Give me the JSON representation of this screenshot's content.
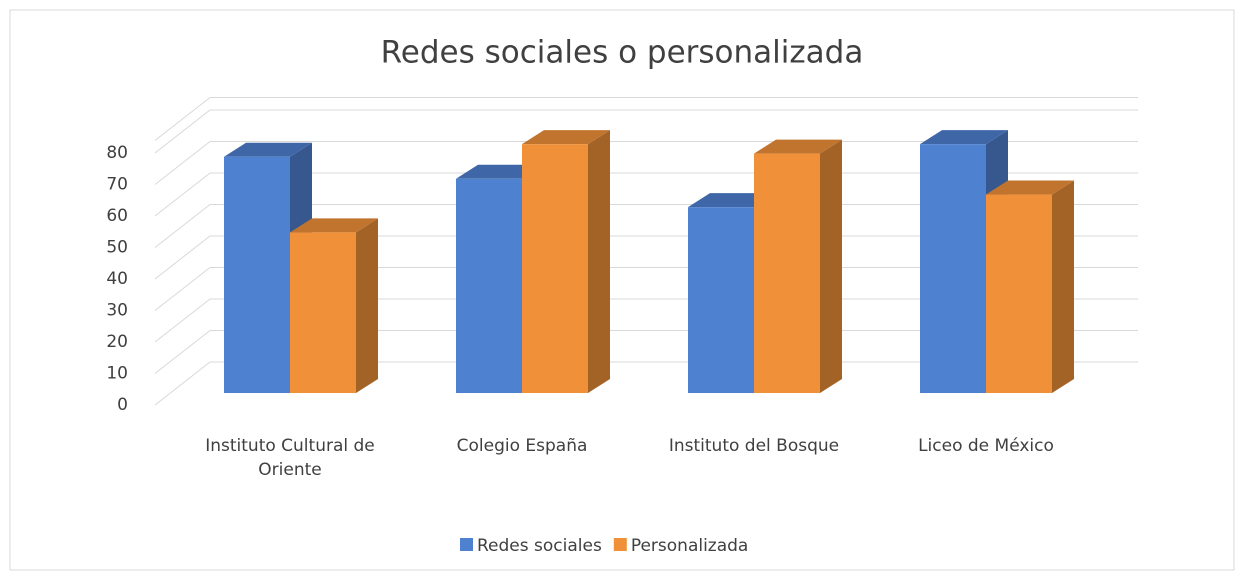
{
  "chart_data": {
    "type": "bar3d",
    "title": "Redes sociales o personalizada",
    "categories": [
      "Instituto Cultural de Oriente",
      "Colegio España",
      "Instituto del Bosque",
      "Liceo de México"
    ],
    "series": [
      {
        "name": "Redes sociales",
        "color": "#4f81d1",
        "values": [
          75,
          68,
          59,
          79
        ]
      },
      {
        "name": "Personalizada",
        "color": "#f0913a",
        "values": [
          51,
          79,
          76,
          63
        ]
      }
    ],
    "ylim": [
      0,
      90
    ],
    "yticks": [
      0,
      10,
      20,
      30,
      40,
      50,
      60,
      70,
      80
    ],
    "grid": true,
    "legend": "bottom"
  }
}
